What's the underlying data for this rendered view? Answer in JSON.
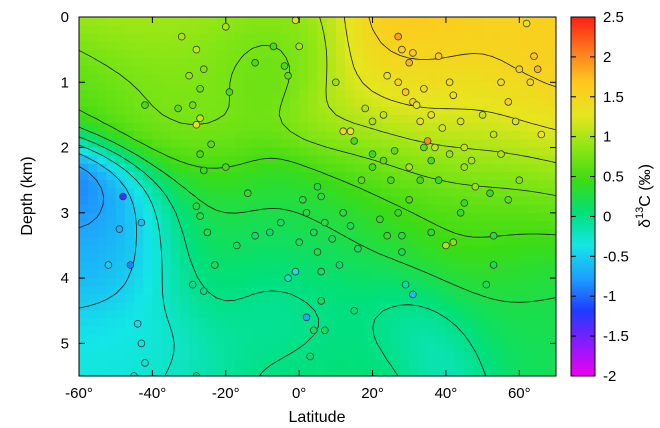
{
  "chart_data": {
    "type": "heatmap",
    "title": "",
    "xlabel": "Latitude",
    "ylabel": "Depth (km)",
    "xlim": [
      -60,
      70
    ],
    "ylim": [
      0,
      5.5
    ],
    "x_ticks": [
      -60,
      -40,
      -20,
      0,
      20,
      40,
      60
    ],
    "x_tick_labels": [
      "-60°",
      "-40°",
      "-20°",
      "0°",
      "20°",
      "40°",
      "60°"
    ],
    "y_ticks": [
      0,
      1,
      2,
      3,
      4,
      5
    ],
    "y_tick_labels": [
      "0",
      "1",
      "2",
      "3",
      "4",
      "5"
    ],
    "colorbar": {
      "label_prefix": "δ",
      "label_sup": "13",
      "label_suffix": "C (‰)",
      "range": [
        -2,
        2.5
      ],
      "ticks": [
        2.5,
        2,
        1.5,
        1,
        0.5,
        0,
        -0.5,
        -1,
        -1.5,
        -2
      ],
      "tick_labels": [
        "2.5",
        "2",
        "1.5",
        "1",
        "0.5",
        "0",
        "-0.5",
        "-1",
        "-1.5",
        "-2"
      ],
      "colors": [
        "#ee00ee",
        "#8a1aff",
        "#1e3cff",
        "#1ea0ff",
        "#14e6e6",
        "#00e07a",
        "#3cdc14",
        "#8ce614",
        "#e6e61e",
        "#ffc81e",
        "#ff781e",
        "#ff1e14"
      ]
    },
    "contour_interval": 0.25,
    "grid": false,
    "samples": [
      {
        "x": -32,
        "y": 0.3,
        "v": 1.0
      },
      {
        "x": -28,
        "y": 0.5,
        "v": 1.1
      },
      {
        "x": -20,
        "y": 0.15,
        "v": 1.0
      },
      {
        "x": -30,
        "y": 0.9,
        "v": 0.9
      },
      {
        "x": -26,
        "y": 0.8,
        "v": 0.8
      },
      {
        "x": -27,
        "y": 1.1,
        "v": 0.7
      },
      {
        "x": -33,
        "y": 1.4,
        "v": 0.6
      },
      {
        "x": -29,
        "y": 1.35,
        "v": 0.7
      },
      {
        "x": -28,
        "y": 1.65,
        "v": 1.4
      },
      {
        "x": -27,
        "y": 1.55,
        "v": 1.1
      },
      {
        "x": -24,
        "y": 1.95,
        "v": 0.6
      },
      {
        "x": -27,
        "y": 2.1,
        "v": 0.5
      },
      {
        "x": -19,
        "y": 1.15,
        "v": 0.5
      },
      {
        "x": -12,
        "y": 0.7,
        "v": 0.5
      },
      {
        "x": -7,
        "y": 0.45,
        "v": 0.5
      },
      {
        "x": -3,
        "y": 0.9,
        "v": 0.6
      },
      {
        "x": -4,
        "y": 0.75,
        "v": 0.5
      },
      {
        "x": -1,
        "y": 0.05,
        "v": 1.2
      },
      {
        "x": 0,
        "y": 0.45,
        "v": 1.0
      },
      {
        "x": -20,
        "y": 2.3,
        "v": 0.5
      },
      {
        "x": -14,
        "y": 2.7,
        "v": 0.4
      },
      {
        "x": -26,
        "y": 2.35,
        "v": 0.4
      },
      {
        "x": -28,
        "y": 2.9,
        "v": 0.3
      },
      {
        "x": -27,
        "y": 3.05,
        "v": 0.3
      },
      {
        "x": -25,
        "y": 3.3,
        "v": 0.3
      },
      {
        "x": -17,
        "y": 3.5,
        "v": 0.2
      },
      {
        "x": -23,
        "y": 3.8,
        "v": 0.2
      },
      {
        "x": -29,
        "y": 4.1,
        "v": 0.0
      },
      {
        "x": -26,
        "y": 4.2,
        "v": 0.0
      },
      {
        "x": -48,
        "y": 2.75,
        "v": -1.3
      },
      {
        "x": -49,
        "y": 3.25,
        "v": -0.7
      },
      {
        "x": -43,
        "y": 3.15,
        "v": -0.6
      },
      {
        "x": -46,
        "y": 3.8,
        "v": -0.9
      },
      {
        "x": -52,
        "y": 3.8,
        "v": -0.5
      },
      {
        "x": -44,
        "y": 4.7,
        "v": -0.4
      },
      {
        "x": -43,
        "y": 5.0,
        "v": -0.4
      },
      {
        "x": -42,
        "y": 5.3,
        "v": -0.3
      },
      {
        "x": -45,
        "y": 5.5,
        "v": -0.3
      },
      {
        "x": -28,
        "y": 5.5,
        "v": 0.0
      },
      {
        "x": -42,
        "y": 1.35,
        "v": 0.5
      },
      {
        "x": -12,
        "y": 3.35,
        "v": 0.1
      },
      {
        "x": -8,
        "y": 3.3,
        "v": 0.1
      },
      {
        "x": -5,
        "y": 3.15,
        "v": 0.2
      },
      {
        "x": 0,
        "y": 3.45,
        "v": 0.2
      },
      {
        "x": 1,
        "y": 2.8,
        "v": 0.3
      },
      {
        "x": 2,
        "y": 3.0,
        "v": 0.3
      },
      {
        "x": 4,
        "y": 3.3,
        "v": 0.2
      },
      {
        "x": 5,
        "y": 3.6,
        "v": 0.3
      },
      {
        "x": 6,
        "y": 3.9,
        "v": 0.2
      },
      {
        "x": 7,
        "y": 3.15,
        "v": 0.3
      },
      {
        "x": 6,
        "y": 2.75,
        "v": 0.3
      },
      {
        "x": 5,
        "y": 2.6,
        "v": 0.3
      },
      {
        "x": 9,
        "y": 3.4,
        "v": 0.2
      },
      {
        "x": -1,
        "y": 3.9,
        "v": -0.4
      },
      {
        "x": -3,
        "y": 4.0,
        "v": -0.2
      },
      {
        "x": 2,
        "y": 4.6,
        "v": -0.7
      },
      {
        "x": 4,
        "y": 4.8,
        "v": 0.2
      },
      {
        "x": 3,
        "y": 5.2,
        "v": 0.1
      },
      {
        "x": 6,
        "y": 4.35,
        "v": 0.2
      },
      {
        "x": 7,
        "y": 4.8,
        "v": 0.2
      },
      {
        "x": 11,
        "y": 3.8,
        "v": 0.1
      },
      {
        "x": 15,
        "y": 4.5,
        "v": 0.1
      },
      {
        "x": 14,
        "y": 3.2,
        "v": 0.2
      },
      {
        "x": 12,
        "y": 1.75,
        "v": 1.5
      },
      {
        "x": 14,
        "y": 1.75,
        "v": 1.3
      },
      {
        "x": 15,
        "y": 1.9,
        "v": 0.5
      },
      {
        "x": 17,
        "y": 2.5,
        "v": 0.6
      },
      {
        "x": 20,
        "y": 2.3,
        "v": 0.5
      },
      {
        "x": 23,
        "y": 2.2,
        "v": 0.6
      },
      {
        "x": 25,
        "y": 2.5,
        "v": 0.5
      },
      {
        "x": 20,
        "y": 2.1,
        "v": 0.4
      },
      {
        "x": 22,
        "y": 3.1,
        "v": 0.4
      },
      {
        "x": 24,
        "y": 3.35,
        "v": 0.4
      },
      {
        "x": 28,
        "y": 3.6,
        "v": 0.2
      },
      {
        "x": 31,
        "y": 4.25,
        "v": -0.6
      },
      {
        "x": 29,
        "y": 4.1,
        "v": -0.1
      },
      {
        "x": 27,
        "y": 3.0,
        "v": 0.4
      },
      {
        "x": 30,
        "y": 2.8,
        "v": 0.5
      },
      {
        "x": 33,
        "y": 2.5,
        "v": 0.5
      },
      {
        "x": 36,
        "y": 2.2,
        "v": 0.5
      },
      {
        "x": 38,
        "y": 2.5,
        "v": 0.4
      },
      {
        "x": 40,
        "y": 3.5,
        "v": 1.0
      },
      {
        "x": 42,
        "y": 3.45,
        "v": 0.8
      },
      {
        "x": 44,
        "y": 3.0,
        "v": 0.4
      },
      {
        "x": 45,
        "y": 2.85,
        "v": 0.4
      },
      {
        "x": 48,
        "y": 2.6,
        "v": 0.9
      },
      {
        "x": 52,
        "y": 2.7,
        "v": 0.4
      },
      {
        "x": 53,
        "y": 3.35,
        "v": 0.3
      },
      {
        "x": 53,
        "y": 3.8,
        "v": 0.2
      },
      {
        "x": 51,
        "y": 4.1,
        "v": 0.2
      },
      {
        "x": 27,
        "y": 0.3,
        "v": 1.9
      },
      {
        "x": 28,
        "y": 0.5,
        "v": 1.6
      },
      {
        "x": 30,
        "y": 0.7,
        "v": 1.8
      },
      {
        "x": 31,
        "y": 0.55,
        "v": 1.6
      },
      {
        "x": 27,
        "y": 1.0,
        "v": 1.5
      },
      {
        "x": 29,
        "y": 1.15,
        "v": 1.7
      },
      {
        "x": 31,
        "y": 1.3,
        "v": 1.5
      },
      {
        "x": 33,
        "y": 1.6,
        "v": 1.4
      },
      {
        "x": 35,
        "y": 1.9,
        "v": 2.0
      },
      {
        "x": 32,
        "y": 1.35,
        "v": 1.3
      },
      {
        "x": 24,
        "y": 0.9,
        "v": 1.3
      },
      {
        "x": 23,
        "y": 1.5,
        "v": 1.1
      },
      {
        "x": 41,
        "y": 1.0,
        "v": 1.4
      },
      {
        "x": 42,
        "y": 1.2,
        "v": 1.3
      },
      {
        "x": 44,
        "y": 1.6,
        "v": 1.2
      },
      {
        "x": 45,
        "y": 2.0,
        "v": 1.1
      },
      {
        "x": 47,
        "y": 2.2,
        "v": 1.0
      },
      {
        "x": 50,
        "y": 1.5,
        "v": 1.1
      },
      {
        "x": 53,
        "y": 1.8,
        "v": 1.1
      },
      {
        "x": 55,
        "y": 2.1,
        "v": 1.0
      },
      {
        "x": 57,
        "y": 1.3,
        "v": 1.6
      },
      {
        "x": 59,
        "y": 1.6,
        "v": 1.2
      },
      {
        "x": 60,
        "y": 0.8,
        "v": 1.6
      },
      {
        "x": 63,
        "y": 1.0,
        "v": 1.5
      },
      {
        "x": 64,
        "y": 0.6,
        "v": 1.7
      },
      {
        "x": 65,
        "y": 0.8,
        "v": 1.8
      },
      {
        "x": 62,
        "y": 0.1,
        "v": 1.4
      },
      {
        "x": 60,
        "y": 2.5,
        "v": 0.8
      },
      {
        "x": 57,
        "y": 2.8,
        "v": 0.6
      },
      {
        "x": 66,
        "y": 1.8,
        "v": 1.3
      },
      {
        "x": 18,
        "y": 1.4,
        "v": 1.0
      },
      {
        "x": 20,
        "y": 1.6,
        "v": 1.0
      },
      {
        "x": 34,
        "y": 1.1,
        "v": 1.4
      },
      {
        "x": 36,
        "y": 1.5,
        "v": 1.3
      },
      {
        "x": 37,
        "y": 2.0,
        "v": 1.1
      },
      {
        "x": 30,
        "y": 2.3,
        "v": 1.0
      },
      {
        "x": 38,
        "y": 0.6,
        "v": 1.7
      },
      {
        "x": 39,
        "y": 1.7,
        "v": 1.2
      },
      {
        "x": 41,
        "y": 2.1,
        "v": 0.9
      },
      {
        "x": 28,
        "y": 3.35,
        "v": 0.3
      },
      {
        "x": 12,
        "y": 3.0,
        "v": 0.3
      },
      {
        "x": 16,
        "y": 3.55,
        "v": 0.2
      },
      {
        "x": 34,
        "y": 2.0,
        "v": 0.6
      },
      {
        "x": 26,
        "y": 2.05,
        "v": 0.6
      },
      {
        "x": 10,
        "y": 1.0,
        "v": 0.9
      },
      {
        "x": 36,
        "y": 3.3,
        "v": 0.3
      },
      {
        "x": 45,
        "y": 2.3,
        "v": 0.9
      },
      {
        "x": 55,
        "y": 1.0,
        "v": 1.4
      }
    ]
  }
}
